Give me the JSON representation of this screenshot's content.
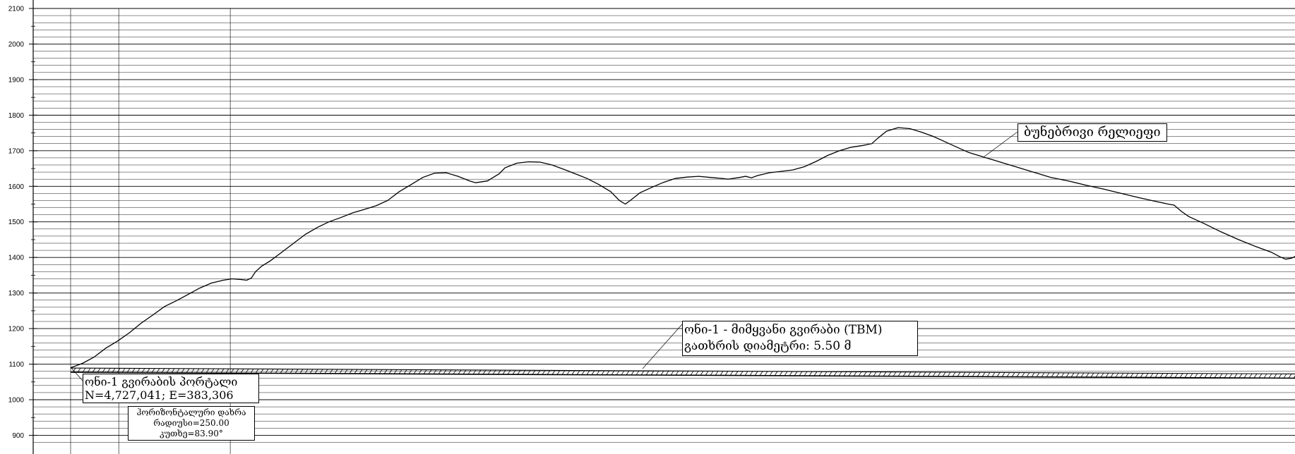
{
  "chart_data": {
    "type": "line",
    "ylim": [
      900,
      2100
    ],
    "y_ticks": [
      2100,
      2000,
      1900,
      1800,
      1700,
      1600,
      1500,
      1400,
      1300,
      1200,
      1100,
      1000,
      900
    ],
    "grid": true,
    "series": [
      {
        "name": "ბუნებრივი რელიეფი",
        "points": [
          [
            0,
            1090
          ],
          [
            20,
            1102
          ],
          [
            40,
            1120
          ],
          [
            60,
            1145
          ],
          [
            80,
            1165
          ],
          [
            100,
            1188
          ],
          [
            120,
            1215
          ],
          [
            140,
            1238
          ],
          [
            160,
            1262
          ],
          [
            180,
            1278
          ],
          [
            200,
            1296
          ],
          [
            220,
            1314
          ],
          [
            240,
            1328
          ],
          [
            260,
            1336
          ],
          [
            275,
            1340
          ],
          [
            290,
            1338
          ],
          [
            300,
            1336
          ],
          [
            308,
            1342
          ],
          [
            315,
            1360
          ],
          [
            325,
            1375
          ],
          [
            340,
            1390
          ],
          [
            360,
            1415
          ],
          [
            380,
            1440
          ],
          [
            400,
            1465
          ],
          [
            420,
            1484
          ],
          [
            440,
            1500
          ],
          [
            460,
            1512
          ],
          [
            480,
            1525
          ],
          [
            500,
            1535
          ],
          [
            520,
            1545
          ],
          [
            540,
            1560
          ],
          [
            560,
            1585
          ],
          [
            580,
            1605
          ],
          [
            600,
            1625
          ],
          [
            620,
            1637
          ],
          [
            640,
            1638
          ],
          [
            660,
            1628
          ],
          [
            680,
            1615
          ],
          [
            690,
            1610
          ],
          [
            710,
            1615
          ],
          [
            730,
            1635
          ],
          [
            740,
            1652
          ],
          [
            760,
            1665
          ],
          [
            780,
            1669
          ],
          [
            800,
            1668
          ],
          [
            820,
            1660
          ],
          [
            840,
            1648
          ],
          [
            860,
            1635
          ],
          [
            880,
            1622
          ],
          [
            900,
            1605
          ],
          [
            920,
            1585
          ],
          [
            935,
            1560
          ],
          [
            945,
            1550
          ],
          [
            955,
            1562
          ],
          [
            970,
            1582
          ],
          [
            990,
            1597
          ],
          [
            1010,
            1611
          ],
          [
            1030,
            1622
          ],
          [
            1050,
            1626
          ],
          [
            1070,
            1628
          ],
          [
            1090,
            1625
          ],
          [
            1110,
            1622
          ],
          [
            1120,
            1620
          ],
          [
            1140,
            1625
          ],
          [
            1150,
            1628
          ],
          [
            1160,
            1624
          ],
          [
            1170,
            1630
          ],
          [
            1190,
            1638
          ],
          [
            1210,
            1642
          ],
          [
            1230,
            1646
          ],
          [
            1250,
            1655
          ],
          [
            1270,
            1670
          ],
          [
            1290,
            1687
          ],
          [
            1310,
            1700
          ],
          [
            1330,
            1710
          ],
          [
            1350,
            1715
          ],
          [
            1365,
            1720
          ],
          [
            1375,
            1735
          ],
          [
            1390,
            1755
          ],
          [
            1410,
            1765
          ],
          [
            1430,
            1762
          ],
          [
            1450,
            1752
          ],
          [
            1470,
            1740
          ],
          [
            1490,
            1725
          ],
          [
            1510,
            1710
          ],
          [
            1530,
            1695
          ],
          [
            1550,
            1685
          ],
          [
            1570,
            1675
          ],
          [
            1590,
            1665
          ],
          [
            1610,
            1655
          ],
          [
            1630,
            1645
          ],
          [
            1650,
            1635
          ],
          [
            1670,
            1625
          ],
          [
            1700,
            1615
          ],
          [
            1730,
            1603
          ],
          [
            1760,
            1592
          ],
          [
            1790,
            1580
          ],
          [
            1820,
            1568
          ],
          [
            1850,
            1557
          ],
          [
            1870,
            1550
          ],
          [
            1880,
            1547
          ],
          [
            1892,
            1530
          ],
          [
            1905,
            1515
          ],
          [
            1930,
            1496
          ],
          [
            1960,
            1472
          ],
          [
            1990,
            1450
          ],
          [
            2020,
            1430
          ],
          [
            2045,
            1415
          ],
          [
            2060,
            1402
          ],
          [
            2070,
            1395
          ],
          [
            2080,
            1398
          ],
          [
            2090,
            1406
          ],
          [
            2105,
            1422
          ],
          [
            2120,
            1436
          ],
          [
            2135,
            1450
          ],
          [
            2145,
            1468
          ],
          [
            2158,
            1484
          ]
        ]
      },
      {
        "name": "ონი-1 - მიმყვანი გვირაბი (TBM)",
        "points": [
          [
            0,
            1089
          ],
          [
            2158,
            1072
          ]
        ]
      }
    ]
  },
  "labels": {
    "terrain": "ბუნებრივი რელიეფი",
    "tunnel_line1": "ონი-1 - მიმყვანი გვირაბი (TBM)",
    "tunnel_line2": "გათხრის დიამეტრი: 5.50 მ",
    "portal_line1": "ონი-1 გვირაბის პორტალი",
    "portal_line2": "N=4,727,041;   E=383,306",
    "curve_line1": "ჰორიზონტალური დახრა",
    "curve_line2": "რადიუსი=250.00",
    "curve_line3": "კუთხე=83.90°"
  },
  "colors": {
    "line": "#000000",
    "grid": "#000000",
    "background": "#ffffff"
  }
}
